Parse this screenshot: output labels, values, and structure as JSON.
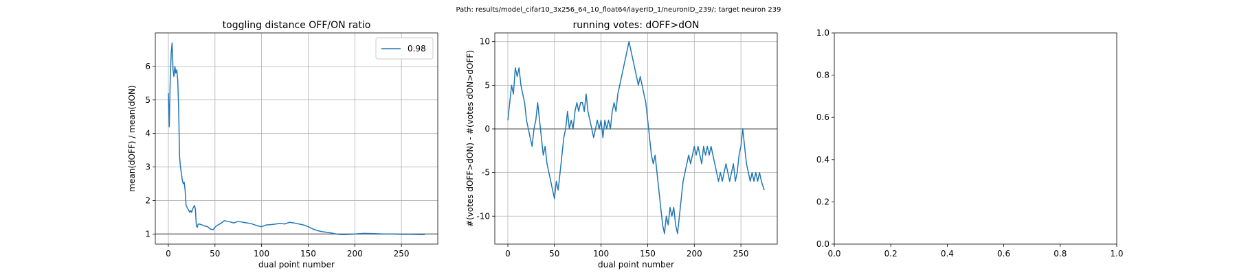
{
  "suptitle": "Path: results/model_cifar10_3x256_64_10_float64/layerID_1/neuronID_239/; target neuron 239",
  "colors": {
    "series": "#1f77b4",
    "reference": "#808080",
    "grid": "#b0b0b0"
  },
  "chart_data": [
    {
      "type": "line",
      "title": "toggling distance OFF/ON ratio",
      "xlabel": "dual point number",
      "ylabel": "mean(dOFF) / mean(dON)",
      "xlim": [
        -14,
        289
      ],
      "ylim": [
        0.7,
        7.0
      ],
      "xticks": [
        0,
        50,
        100,
        150,
        200,
        250
      ],
      "yticks": [
        1,
        2,
        3,
        4,
        5,
        6
      ],
      "grid": true,
      "reference_line_y": 1,
      "legend": {
        "position": "top-right",
        "entries": [
          "0.98"
        ]
      },
      "series": [
        {
          "name": "0.98",
          "x": [
            0,
            1,
            2,
            3,
            4,
            5,
            6,
            7,
            8,
            9,
            10,
            11,
            12,
            13,
            14,
            15,
            16,
            17,
            18,
            19,
            20,
            21,
            22,
            23,
            24,
            25,
            26,
            27,
            28,
            29,
            30,
            31,
            32,
            33,
            35,
            38,
            42,
            45,
            48,
            50,
            52,
            55,
            58,
            60,
            65,
            70,
            75,
            80,
            85,
            90,
            95,
            100,
            105,
            110,
            115,
            120,
            125,
            130,
            135,
            140,
            145,
            150,
            155,
            160,
            165,
            170,
            175,
            180,
            185,
            190,
            195,
            200,
            210,
            220,
            230,
            240,
            250,
            260,
            270,
            275
          ],
          "y": [
            5.2,
            4.2,
            5.6,
            6.4,
            6.7,
            5.9,
            5.7,
            6.0,
            5.8,
            5.9,
            5.6,
            4.8,
            3.3,
            3.0,
            2.8,
            2.6,
            2.5,
            2.55,
            2.3,
            1.85,
            1.8,
            1.75,
            1.7,
            1.65,
            1.7,
            1.65,
            1.75,
            1.8,
            1.85,
            1.75,
            1.25,
            1.2,
            1.3,
            1.3,
            1.28,
            1.25,
            1.22,
            1.15,
            1.13,
            1.2,
            1.25,
            1.3,
            1.35,
            1.4,
            1.37,
            1.33,
            1.38,
            1.35,
            1.33,
            1.3,
            1.25,
            1.22,
            1.27,
            1.28,
            1.3,
            1.32,
            1.3,
            1.35,
            1.33,
            1.3,
            1.27,
            1.22,
            1.15,
            1.1,
            1.07,
            1.05,
            1.03,
            1.0,
            0.98,
            0.98,
            0.99,
            1.0,
            1.02,
            1.01,
            1.0,
            1.0,
            0.99,
            0.99,
            0.98,
            0.98
          ]
        }
      ]
    },
    {
      "type": "line",
      "title": "running votes: dOFF>dON",
      "xlabel": "dual point number",
      "ylabel": "#(votes dOFF>dON) - #(votes dON>dOFF)",
      "xlim": [
        -14,
        289
      ],
      "ylim": [
        -13.2,
        11.0
      ],
      "xticks": [
        0,
        50,
        100,
        150,
        200,
        250
      ],
      "yticks": [
        -10,
        -5,
        0,
        5,
        10
      ],
      "grid": true,
      "reference_line_y": 0,
      "series": [
        {
          "x": [
            0,
            4,
            6,
            8,
            10,
            12,
            14,
            16,
            18,
            20,
            22,
            24,
            26,
            28,
            30,
            32,
            34,
            36,
            38,
            40,
            42,
            44,
            46,
            48,
            50,
            52,
            54,
            56,
            58,
            60,
            62,
            64,
            66,
            68,
            70,
            72,
            74,
            76,
            78,
            80,
            82,
            84,
            86,
            88,
            90,
            92,
            94,
            96,
            98,
            100,
            102,
            104,
            106,
            108,
            110,
            112,
            114,
            116,
            118,
            120,
            122,
            124,
            126,
            128,
            130,
            132,
            134,
            136,
            138,
            140,
            142,
            144,
            146,
            148,
            150,
            152,
            154,
            156,
            158,
            160,
            162,
            164,
            166,
            168,
            170,
            172,
            174,
            176,
            178,
            180,
            182,
            184,
            186,
            188,
            190,
            192,
            194,
            196,
            198,
            200,
            202,
            204,
            206,
            208,
            210,
            212,
            214,
            216,
            218,
            220,
            222,
            224,
            226,
            228,
            230,
            232,
            234,
            236,
            238,
            240,
            242,
            244,
            246,
            248,
            250,
            252,
            254,
            256,
            258,
            260,
            262,
            264,
            266,
            268,
            270,
            272,
            275
          ],
          "y": [
            1,
            5,
            4,
            7,
            6,
            7,
            5,
            4,
            3,
            1,
            0,
            -1,
            -2,
            0,
            1,
            3,
            1,
            -1,
            -3,
            -2,
            -4,
            -5,
            -6,
            -7,
            -8,
            -6,
            -7,
            -5,
            -3,
            -1,
            0,
            2,
            0,
            1,
            0,
            2,
            3,
            2,
            3,
            3,
            2,
            4,
            2,
            1,
            0,
            -1,
            0,
            1,
            0,
            1,
            -1,
            1,
            0,
            1,
            0,
            2,
            3,
            2,
            4,
            5,
            6,
            7,
            8,
            9,
            10,
            9,
            8,
            7,
            6,
            5,
            6,
            5,
            4,
            3,
            1,
            -1,
            -3,
            -4,
            -3,
            -5,
            -7,
            -9,
            -11,
            -12,
            -10,
            -11,
            -9,
            -10,
            -9,
            -11,
            -12,
            -10,
            -8,
            -6,
            -5,
            -4,
            -3,
            -4,
            -3,
            -2,
            -3,
            -2,
            -3,
            -4,
            -2,
            -3,
            -2,
            -3,
            -2,
            -3,
            -4,
            -5,
            -6,
            -5,
            -6,
            -5,
            -4,
            -5,
            -6,
            -5,
            -4,
            -6,
            -5,
            -3,
            -2,
            0,
            -2,
            -4,
            -5,
            -6,
            -5,
            -6,
            -5,
            -6,
            -5,
            -6,
            -7
          ]
        }
      ]
    },
    {
      "type": "line",
      "title": "",
      "xlabel": "",
      "ylabel": "",
      "xlim": [
        0,
        1
      ],
      "ylim": [
        0,
        1
      ],
      "xticks": [
        0.0,
        0.2,
        0.4,
        0.6,
        0.8,
        1.0
      ],
      "yticks": [
        0.0,
        0.2,
        0.4,
        0.6,
        0.8,
        1.0
      ],
      "tick_format_decimals": 1,
      "grid": false,
      "series": []
    }
  ]
}
